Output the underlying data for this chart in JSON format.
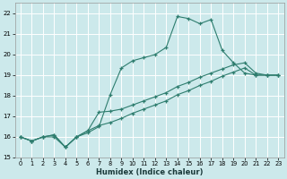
{
  "xlabel": "Humidex (Indice chaleur)",
  "xlim": [
    -0.5,
    23.5
  ],
  "ylim": [
    15,
    22.5
  ],
  "yticks": [
    15,
    16,
    17,
    18,
    19,
    20,
    21,
    22
  ],
  "xticks": [
    0,
    1,
    2,
    3,
    4,
    5,
    6,
    7,
    8,
    9,
    10,
    11,
    12,
    13,
    14,
    15,
    16,
    17,
    18,
    19,
    20,
    21,
    22,
    23
  ],
  "bg_color": "#cce9eb",
  "grid_color": "#ffffff",
  "line_color": "#2e7d6e",
  "line1_y": [
    16.0,
    15.8,
    16.0,
    16.0,
    15.5,
    16.0,
    16.2,
    16.5,
    18.05,
    19.35,
    19.7,
    19.85,
    20.0,
    20.35,
    21.85,
    21.75,
    21.5,
    21.7,
    20.2,
    19.6,
    19.1,
    19.0,
    19.0,
    19.0
  ],
  "line2_y": [
    16.0,
    15.8,
    16.0,
    16.1,
    15.5,
    16.0,
    16.3,
    17.2,
    17.25,
    17.35,
    17.55,
    17.75,
    17.95,
    18.15,
    18.45,
    18.65,
    18.9,
    19.1,
    19.3,
    19.5,
    19.6,
    19.1,
    19.0,
    19.0
  ],
  "line3_y": [
    16.0,
    15.8,
    16.0,
    16.1,
    15.5,
    16.0,
    16.3,
    16.55,
    16.7,
    16.9,
    17.15,
    17.35,
    17.55,
    17.75,
    18.05,
    18.25,
    18.5,
    18.7,
    18.95,
    19.15,
    19.35,
    19.0,
    19.0,
    19.0
  ]
}
